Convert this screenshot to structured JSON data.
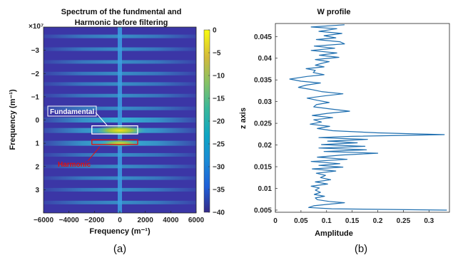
{
  "chart_data": [
    {
      "type": "heatmap",
      "title": [
        "Spectrum of the fundmental and",
        "Harmonic before filtering"
      ],
      "xlabel": "Frequency (m⁻¹)",
      "ylabel": "Frequency (m⁻¹)",
      "y_multiplier": "×10⁷",
      "xlim": [
        -6000,
        6000
      ],
      "ylim": [
        -4,
        4
      ],
      "x_ticks": [
        -6000,
        -4000,
        -2000,
        0,
        2000,
        4000,
        6000
      ],
      "y_ticks": [
        -3,
        -2,
        -1,
        0,
        1,
        2,
        3
      ],
      "y_reversed": true,
      "colorbar": {
        "min": -40,
        "max": 0,
        "ticks": [
          0,
          -5,
          -10,
          -15,
          -20,
          -25,
          -30,
          -35,
          -40
        ],
        "colormap": "parula"
      },
      "features": {
        "vertical_line_x": 0,
        "horizontal_bands_y": [
          -3.6,
          -3.05,
          -2.5,
          -2.0,
          -1.55,
          -1.05,
          -0.5,
          0,
          0.45,
          1.0,
          1.5,
          2.0,
          2.5,
          3.0,
          3.55
        ],
        "bright_band_y": [
          0,
          0.45,
          1.0
        ]
      },
      "annotations": [
        {
          "text": "Fundamental",
          "color": "#ffffff",
          "box": {
            "x": [
              -2200,
              1400
            ],
            "y": [
              0.25,
              0.6
            ]
          }
        },
        {
          "text": "Harmonic",
          "color": "#e01010",
          "box": {
            "x": [
              -2200,
              1400
            ],
            "y": [
              0.85,
              1.05
            ]
          }
        }
      ],
      "caption": "(a)"
    },
    {
      "type": "line",
      "title": "W profile",
      "xlabel": "Amplitude",
      "ylabel": "z axis",
      "xlim": [
        0,
        0.34
      ],
      "ylim": [
        0.0045,
        0.048
      ],
      "x_ticks": [
        0,
        0.05,
        0.1,
        0.15,
        0.2,
        0.25,
        0.3
      ],
      "y_ticks": [
        0.005,
        0.01,
        0.015,
        0.02,
        0.025,
        0.03,
        0.035,
        0.04,
        0.045
      ],
      "color": "#1f6fb0",
      "series": [
        {
          "points": [
            [
              0.135,
              0.0477
            ],
            [
              0.07,
              0.0472
            ],
            [
              0.12,
              0.0468
            ],
            [
              0.085,
              0.0462
            ],
            [
              0.13,
              0.0457
            ],
            [
              0.095,
              0.0452
            ],
            [
              0.118,
              0.0447
            ],
            [
              0.08,
              0.0443
            ],
            [
              0.126,
              0.0438
            ],
            [
              0.135,
              0.0433
            ],
            [
              0.076,
              0.0428
            ],
            [
              0.116,
              0.0423
            ],
            [
              0.07,
              0.0418
            ],
            [
              0.12,
              0.0412
            ],
            [
              0.086,
              0.0407
            ],
            [
              0.124,
              0.0402
            ],
            [
              0.078,
              0.0397
            ],
            [
              0.105,
              0.0392
            ],
            [
              0.09,
              0.0388
            ],
            [
              0.078,
              0.0384
            ],
            [
              0.095,
              0.038
            ],
            [
              0.06,
              0.0376
            ],
            [
              0.078,
              0.0372
            ],
            [
              0.074,
              0.0367
            ],
            [
              0.095,
              0.0362
            ],
            [
              0.062,
              0.0358
            ],
            [
              0.028,
              0.0352
            ],
            [
              0.05,
              0.0347
            ],
            [
              0.088,
              0.0343
            ],
            [
              0.06,
              0.0338
            ],
            [
              0.045,
              0.0333
            ],
            [
              0.07,
              0.0328
            ],
            [
              0.09,
              0.0323
            ],
            [
              0.132,
              0.0318
            ],
            [
              0.095,
              0.0313
            ],
            [
              0.062,
              0.0308
            ],
            [
              0.082,
              0.0303
            ],
            [
              0.105,
              0.0298
            ],
            [
              0.08,
              0.0293
            ],
            [
              0.075,
              0.0288
            ],
            [
              0.108,
              0.0283
            ],
            [
              0.145,
              0.0278
            ],
            [
              0.102,
              0.0273
            ],
            [
              0.072,
              0.0268
            ],
            [
              0.112,
              0.0263
            ],
            [
              0.075,
              0.0258
            ],
            [
              0.09,
              0.0253
            ],
            [
              0.068,
              0.0248
            ],
            [
              0.106,
              0.0243
            ],
            [
              0.082,
              0.0238
            ],
            [
              0.112,
              0.0233
            ],
            [
              0.2,
              0.0228
            ],
            [
              0.33,
              0.0224
            ],
            [
              0.15,
              0.022
            ],
            [
              0.085,
              0.0217
            ],
            [
              0.18,
              0.0213
            ],
            [
              0.102,
              0.0209
            ],
            [
              0.16,
              0.0205
            ],
            [
              0.09,
              0.0201
            ],
            [
              0.175,
              0.0197
            ],
            [
              0.085,
              0.0193
            ],
            [
              0.178,
              0.0189
            ],
            [
              0.095,
              0.0185
            ],
            [
              0.2,
              0.0181
            ],
            [
              0.13,
              0.0177
            ],
            [
              0.082,
              0.0172
            ],
            [
              0.14,
              0.0167
            ],
            [
              0.07,
              0.0162
            ],
            [
              0.126,
              0.0157
            ],
            [
              0.085,
              0.0153
            ],
            [
              0.132,
              0.0149
            ],
            [
              0.072,
              0.0145
            ],
            [
              0.118,
              0.014
            ],
            [
              0.08,
              0.0135
            ],
            [
              0.098,
              0.013
            ],
            [
              0.088,
              0.0125
            ],
            [
              0.108,
              0.012
            ],
            [
              0.078,
              0.0115
            ],
            [
              0.102,
              0.011
            ],
            [
              0.07,
              0.0105
            ],
            [
              0.086,
              0.0101
            ],
            [
              0.078,
              0.0096
            ],
            [
              0.088,
              0.0091
            ],
            [
              0.076,
              0.0086
            ],
            [
              0.096,
              0.0082
            ],
            [
              0.078,
              0.0078
            ],
            [
              0.082,
              0.0074
            ],
            [
              0.105,
              0.007
            ],
            [
              0.135,
              0.0067
            ],
            [
              0.1,
              0.0063
            ],
            [
              0.075,
              0.006
            ],
            [
              0.065,
              0.0056
            ],
            [
              0.11,
              0.0053
            ],
            [
              0.335,
              0.005
            ]
          ]
        }
      ],
      "caption": "(b)"
    }
  ]
}
